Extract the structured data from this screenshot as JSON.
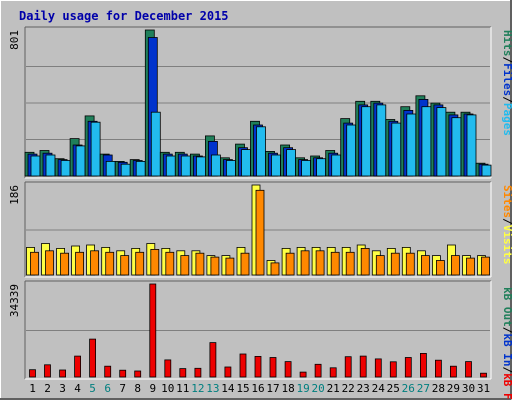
{
  "chart_data": {
    "type": "bar",
    "title": "Daily usage for December 2015",
    "days": [
      "1",
      "2",
      "3",
      "4",
      "5",
      "6",
      "7",
      "8",
      "9",
      "10",
      "11",
      "12",
      "13",
      "14",
      "15",
      "16",
      "17",
      "18",
      "19",
      "20",
      "21",
      "22",
      "23",
      "24",
      "25",
      "26",
      "27",
      "28",
      "29",
      "30",
      "31"
    ],
    "weekend_days": [
      "5",
      "6",
      "12",
      "13",
      "19",
      "20",
      "26",
      "27"
    ],
    "colors": {
      "title": "#0000aa",
      "background": "#c0c0c0",
      "grid": "#7f7f7f",
      "hits": "#1f7f5a",
      "files": "#0033cc",
      "pages": "#22bbee",
      "visits": "#ffff44",
      "sites": "#ff8800",
      "kbytes": "#ee0000",
      "weekend_label": "#007f7f",
      "day_label": "#000000"
    },
    "panels": [
      {
        "name": "hits-files-pages",
        "ymax_label": "801",
        "ymax": 801,
        "legend": [
          {
            "label": "Pages",
            "color": "#22bbee"
          },
          {
            "label": "Files",
            "color": "#0033cc"
          },
          {
            "label": "Hits",
            "color": "#1f7f5a"
          }
        ],
        "series": [
          {
            "name": "Hits",
            "values": [
              130,
              140,
              95,
              205,
              330,
              120,
              80,
              90,
              801,
              130,
              130,
              120,
              220,
              100,
              175,
              300,
              135,
              170,
              100,
              110,
              140,
              315,
              410,
              410,
              310,
              380,
              440,
              400,
              350,
              350,
              70
            ]
          },
          {
            "name": "Files",
            "values": [
              120,
              125,
              90,
              170,
              300,
              115,
              75,
              85,
              760,
              120,
              120,
              110,
              190,
              90,
              155,
              280,
              125,
              155,
              90,
              100,
              125,
              290,
              390,
              400,
              300,
              360,
              420,
              390,
              335,
              340,
              65
            ]
          },
          {
            "name": "Pages",
            "values": [
              110,
              115,
              85,
              165,
              295,
              80,
              65,
              80,
              350,
              110,
              110,
              105,
              115,
              85,
              145,
              270,
              115,
              145,
              85,
              95,
              115,
              280,
              380,
              390,
              290,
              340,
              380,
              375,
              320,
              335,
              60
            ]
          }
        ]
      },
      {
        "name": "visits-sites",
        "ymax_label": "186",
        "ymax": 186,
        "legend": [
          {
            "label": "Visits",
            "color": "#ffff44"
          },
          {
            "label": "Sites",
            "color": "#ff8800"
          }
        ],
        "series": [
          {
            "name": "Visits",
            "values": [
              57,
              65,
              55,
              60,
              62,
              57,
              50,
              55,
              65,
              55,
              50,
              50,
              40,
              40,
              57,
              186,
              30,
              55,
              57,
              57,
              57,
              57,
              62,
              50,
              55,
              57,
              50,
              40,
              62,
              40,
              40
            ]
          },
          {
            "name": "Sites",
            "values": [
              47,
              50,
              45,
              47,
              50,
              47,
              40,
              47,
              53,
              47,
              40,
              45,
              37,
              35,
              45,
              175,
              25,
              45,
              50,
              50,
              47,
              47,
              55,
              40,
              45,
              45,
              40,
              30,
              40,
              35,
              37
            ]
          }
        ]
      },
      {
        "name": "kbytes",
        "ymax_label": "34339",
        "ymax": 34339,
        "legend": [
          {
            "label": "kB F",
            "color": "#ee0000"
          },
          {
            "label": "kB In",
            "color": "#0033cc"
          },
          {
            "label": "kB Out",
            "color": "#1f7f5a"
          }
        ],
        "series": [
          {
            "name": "kB F",
            "values": [
              2700,
              4500,
              2600,
              7700,
              14000,
              4000,
              2500,
              2200,
              34339,
              6300,
              3100,
              3200,
              12700,
              3700,
              8500,
              7600,
              7200,
              5700,
              1800,
              4700,
              3400,
              7500,
              7700,
              6700,
              5600,
              7200,
              8700,
              6200,
              4000,
              5700,
              1400
            ]
          }
        ]
      }
    ]
  }
}
